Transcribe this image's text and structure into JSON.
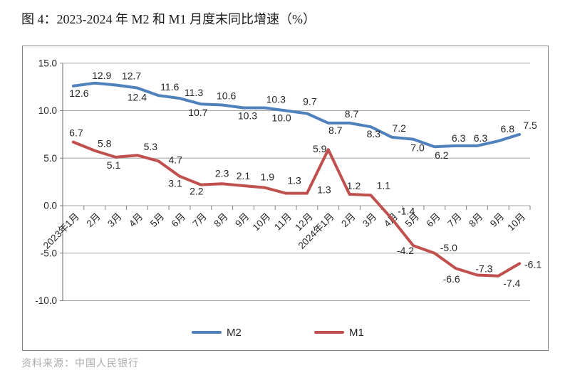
{
  "figure": {
    "title": "图 4：2023-2024 年 M2 和 M1 月度末同比增速（%）",
    "source_note": "资料来源：中国人民银行"
  },
  "chart_data": {
    "type": "line",
    "title": "2023-2024 年 M2 和 M1 月度末同比增速（%）",
    "categories": [
      "2023年1月",
      "2月",
      "3月",
      "4月",
      "5月",
      "6月",
      "7月",
      "8月",
      "9月",
      "10月",
      "11月",
      "12月",
      "2024年1月",
      "2月",
      "3月",
      "4月",
      "5月",
      "6月",
      "7月",
      "8月",
      "9月",
      "10月"
    ],
    "series": [
      {
        "name": "M2",
        "color": "#4F81BD",
        "values": [
          12.6,
          12.9,
          12.7,
          12.4,
          11.6,
          11.3,
          10.7,
          10.6,
          10.3,
          10.3,
          10.0,
          9.7,
          8.7,
          8.7,
          8.3,
          7.2,
          7.0,
          6.2,
          6.3,
          6.3,
          6.8,
          7.5
        ]
      },
      {
        "name": "M1",
        "color": "#C0504D",
        "values": [
          6.7,
          5.8,
          5.1,
          5.3,
          4.7,
          3.1,
          2.2,
          2.3,
          2.1,
          1.9,
          1.3,
          1.3,
          5.9,
          1.2,
          1.1,
          -1.4,
          -4.2,
          -5.0,
          -6.6,
          -7.3,
          -7.4,
          -6.1
        ]
      }
    ],
    "xlabel": "",
    "ylabel": "",
    "ylim": [
      -10,
      15
    ],
    "ytick_step": 5,
    "ytick_labels": [
      "15.0",
      "10.0",
      "5.0",
      "0.0",
      "-5.0",
      "-10.0"
    ],
    "xtick_rotation": 45,
    "grid": true,
    "data_labels": true,
    "legend_position": "bottom",
    "grid_color": "#A6A6A6",
    "axis_color": "#808080",
    "text_color": "#262626"
  }
}
